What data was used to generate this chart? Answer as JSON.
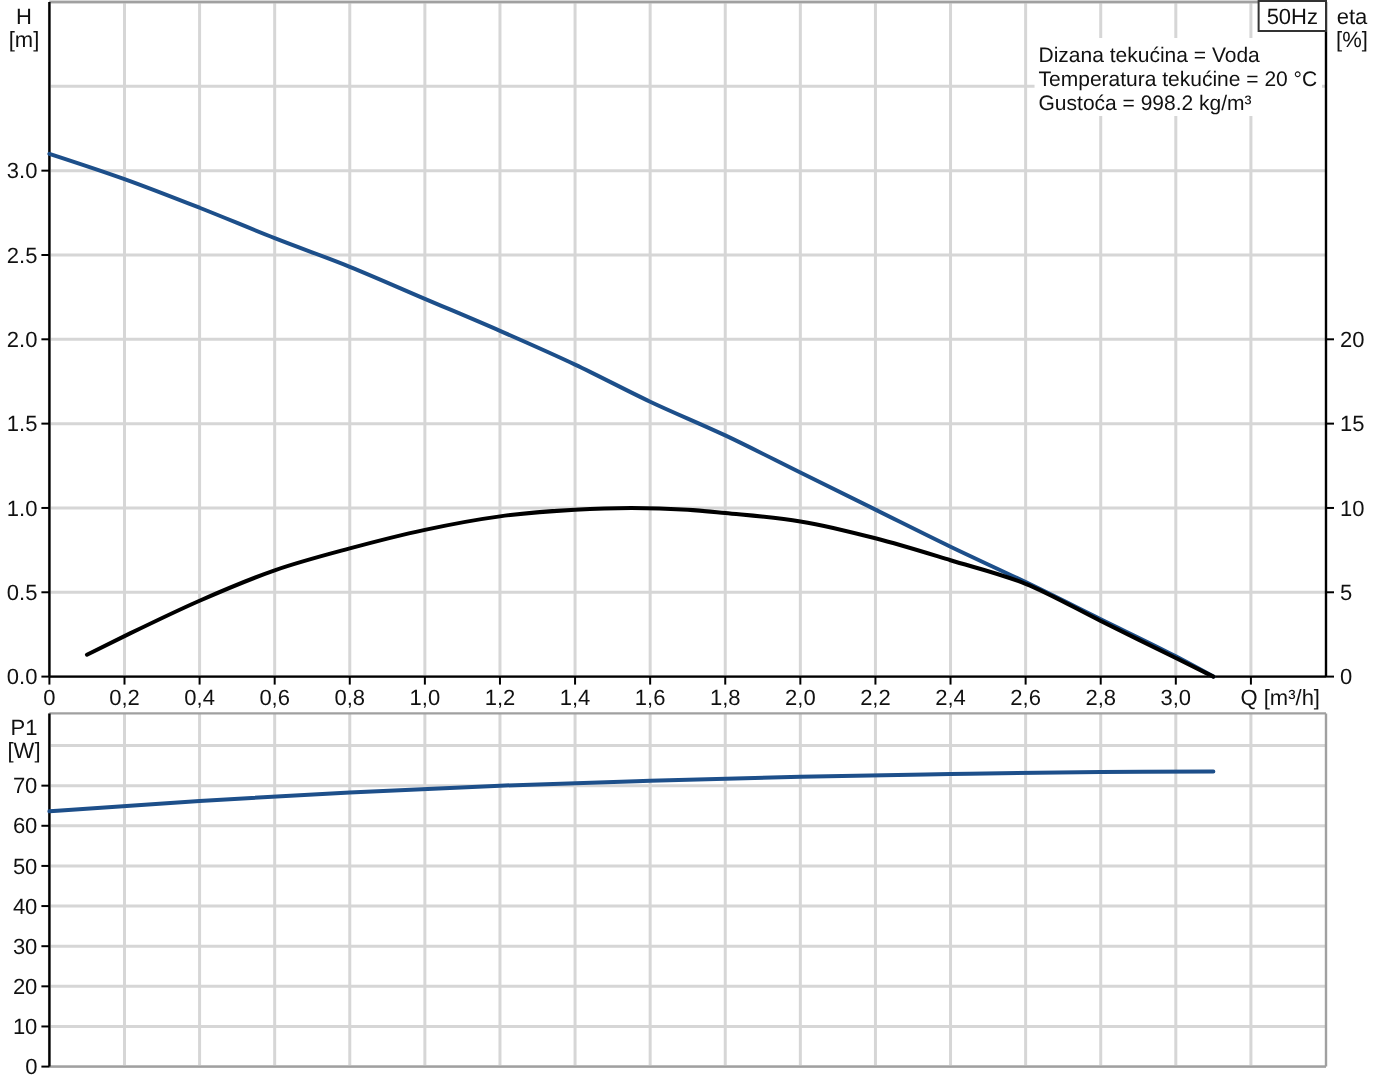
{
  "chart_data": [
    {
      "type": "line",
      "title": "50Hz",
      "xlabel": "Q [m³/h]",
      "ylabel": "H [m]",
      "y2label": "eta [%]",
      "annotations": [
        "Dizana tekućina = Voda",
        "Temperatura tekućine = 20 °C",
        "Gustoća = 998.2 kg/m³"
      ],
      "xlim": [
        0,
        3.4
      ],
      "xticks": [
        0,
        {
          "value": 0.2,
          "label": "0,2"
        },
        {
          "value": 0.4,
          "label": "0,4"
        },
        {
          "value": 0.6,
          "label": "0,6"
        },
        {
          "value": 0.8,
          "label": "0,8"
        },
        {
          "value": 1,
          "label": "1,0"
        },
        {
          "value": 1.2,
          "label": "1,2"
        },
        {
          "value": 1.4,
          "label": "1,4"
        },
        {
          "value": 1.6,
          "label": "1,6"
        },
        {
          "value": 1.8,
          "label": "1,8"
        },
        {
          "value": 2,
          "label": "2,0"
        },
        {
          "value": 2.2,
          "label": "2,2"
        },
        {
          "value": 2.4,
          "label": "2,4"
        },
        {
          "value": 2.6,
          "label": "2,6"
        },
        {
          "value": 2.8,
          "label": "2,8"
        },
        {
          "value": 3,
          "label": "3,0"
        },
        {
          "value": 3.2,
          "label": null
        }
      ],
      "ylim": [
        0,
        4
      ],
      "yticks": [
        {
          "value": 0,
          "label": "0.0"
        },
        0.5,
        {
          "value": 1,
          "label": "1.0"
        },
        1.5,
        {
          "value": 2,
          "label": "2.0"
        },
        2.5,
        {
          "value": 3,
          "label": "3.0"
        },
        {
          "value": 3.5,
          "label": null
        },
        {
          "value": 4,
          "label": null
        }
      ],
      "y2lim": [
        0,
        40
      ],
      "y2ticks": [
        0,
        5,
        10,
        15,
        20
      ],
      "grid": true,
      "series": [
        {
          "color": "#1d4f8a",
          "x": [
            0,
            0.2,
            0.4,
            0.6,
            0.8,
            1.0,
            1.2,
            1.4,
            1.6,
            1.8,
            2.0,
            2.2,
            2.4,
            2.6,
            2.8,
            3.0,
            3.1
          ],
          "values": [
            3.1,
            2.95,
            2.78,
            2.6,
            2.43,
            2.24,
            2.05,
            1.85,
            1.63,
            1.43,
            1.21,
            0.99,
            0.77,
            0.56,
            0.34,
            0.12,
            0
          ]
        },
        {
          "color": "#000000",
          "axis": "y2",
          "x": [
            0.1,
            0.2,
            0.4,
            0.6,
            0.8,
            1.0,
            1.2,
            1.4,
            1.55,
            1.7,
            1.8,
            2.0,
            2.2,
            2.4,
            2.6,
            2.8,
            3.0,
            3.1
          ],
          "values": [
            1.3,
            2.4,
            4.5,
            6.3,
            7.6,
            8.7,
            9.5,
            9.9,
            10.0,
            9.9,
            9.7,
            9.2,
            8.2,
            6.9,
            5.5,
            3.3,
            1.1,
            0
          ]
        }
      ]
    },
    {
      "type": "line",
      "ylabel": "P1 [W]",
      "tick_labels": "y",
      "xlim": [
        0,
        3.4
      ],
      "xticks": [
        0,
        0.2,
        0.4,
        0.6,
        0.8,
        1,
        1.2,
        1.4,
        1.6,
        1.8,
        2,
        2.2,
        2.4,
        2.6,
        2.8,
        3,
        3.2
      ],
      "ylim": [
        0,
        88
      ],
      "yticks": [
        0,
        10,
        20,
        30,
        40,
        50,
        60,
        70,
        {
          "value": 80,
          "label": null
        }
      ],
      "grid": true,
      "series": [
        {
          "color": "#1d4f8a",
          "x": [
            0,
            0.4,
            0.8,
            1.2,
            1.6,
            2.0,
            2.4,
            2.8,
            3.1
          ],
          "values": [
            63.6,
            66.2,
            68.3,
            70.0,
            71.2,
            72.2,
            72.9,
            73.4,
            73.5
          ]
        }
      ]
    }
  ]
}
